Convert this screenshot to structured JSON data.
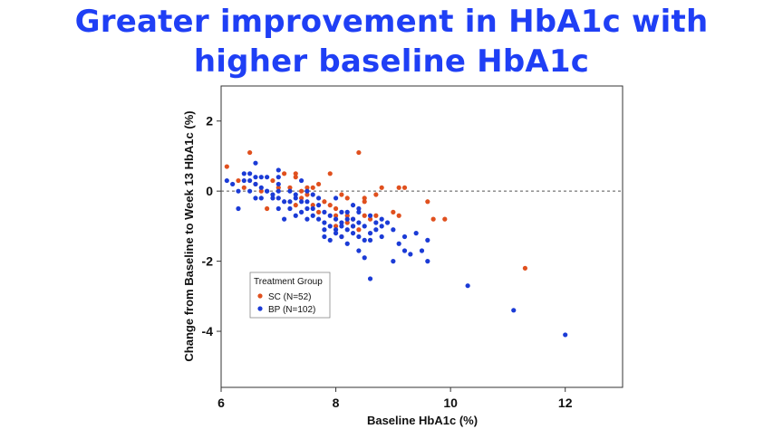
{
  "title_line1": "Greater improvement in HbA1c with",
  "title_line2": "higher baseline HbA1c",
  "colors": {
    "title": "#1f3ff5",
    "sc": "#e0501e",
    "bp": "#1b3bd6"
  },
  "chart_data": {
    "type": "scatter",
    "xlabel": "Baseline HbA1c (%)",
    "ylabel": "Change from Baseline to Week 13 HbA1c (%)",
    "xlim": [
      6,
      13
    ],
    "ylim": [
      -5.6,
      3
    ],
    "xticks": [
      6,
      8,
      10,
      12
    ],
    "yticks": [
      2,
      0,
      -2,
      -4
    ],
    "reference_line": {
      "y": 0,
      "style": "dashed"
    },
    "legend": {
      "title": "Treatment Group",
      "placement": "lower-left"
    },
    "series": [
      {
        "name": "SC (N=52)",
        "color": "#e0501e",
        "points": [
          [
            6.1,
            0.7
          ],
          [
            6.3,
            0.3
          ],
          [
            6.4,
            0.1
          ],
          [
            6.5,
            1.1
          ],
          [
            6.6,
            0.2
          ],
          [
            6.7,
            0.0
          ],
          [
            6.8,
            -0.5
          ],
          [
            6.9,
            0.3
          ],
          [
            7.0,
            0.1
          ],
          [
            7.1,
            0.5
          ],
          [
            7.2,
            0.1
          ],
          [
            7.3,
            0.5
          ],
          [
            7.3,
            0.4
          ],
          [
            7.4,
            0.0
          ],
          [
            7.4,
            -0.2
          ],
          [
            7.5,
            0.1
          ],
          [
            7.5,
            -0.1
          ],
          [
            7.6,
            -0.4
          ],
          [
            7.6,
            0.1
          ],
          [
            7.7,
            0.2
          ],
          [
            7.7,
            -0.6
          ],
          [
            7.8,
            -0.3
          ],
          [
            7.9,
            0.5
          ],
          [
            7.9,
            -0.4
          ],
          [
            8.0,
            -0.5
          ],
          [
            8.0,
            -0.7
          ],
          [
            8.0,
            -1.0
          ],
          [
            8.1,
            -0.1
          ],
          [
            8.1,
            -1.3
          ],
          [
            8.2,
            -0.2
          ],
          [
            8.2,
            -0.7
          ],
          [
            8.2,
            -0.9
          ],
          [
            8.3,
            -0.8
          ],
          [
            8.3,
            -1.0
          ],
          [
            8.4,
            1.1
          ],
          [
            8.4,
            -1.1
          ],
          [
            8.5,
            -0.2
          ],
          [
            8.5,
            -0.3
          ],
          [
            8.5,
            -0.7
          ],
          [
            8.6,
            -0.8
          ],
          [
            8.7,
            -0.1
          ],
          [
            8.7,
            -0.7
          ],
          [
            8.8,
            0.1
          ],
          [
            9.0,
            -0.6
          ],
          [
            9.1,
            -0.7
          ],
          [
            9.1,
            0.1
          ],
          [
            9.2,
            0.1
          ],
          [
            9.6,
            -0.3
          ],
          [
            9.7,
            -0.8
          ],
          [
            9.9,
            -0.8
          ],
          [
            7.3,
            -0.4
          ],
          [
            11.3,
            -2.2
          ]
        ]
      },
      {
        "name": "BP (N=102)",
        "color": "#1b3bd6",
        "points": [
          [
            6.1,
            0.3
          ],
          [
            6.2,
            0.2
          ],
          [
            6.3,
            0.0
          ],
          [
            6.3,
            -0.5
          ],
          [
            6.4,
            0.5
          ],
          [
            6.4,
            0.3
          ],
          [
            6.5,
            0.0
          ],
          [
            6.5,
            0.3
          ],
          [
            6.5,
            0.5
          ],
          [
            6.6,
            0.8
          ],
          [
            6.6,
            0.4
          ],
          [
            6.6,
            0.2
          ],
          [
            6.6,
            -0.2
          ],
          [
            6.7,
            0.4
          ],
          [
            6.7,
            0.1
          ],
          [
            6.7,
            -0.2
          ],
          [
            6.8,
            0.0
          ],
          [
            6.8,
            0.4
          ],
          [
            6.9,
            -0.1
          ],
          [
            6.9,
            -0.2
          ],
          [
            7.0,
            0.6
          ],
          [
            7.0,
            0.4
          ],
          [
            7.0,
            0.2
          ],
          [
            7.0,
            -0.2
          ],
          [
            7.0,
            -0.5
          ],
          [
            7.1,
            -0.3
          ],
          [
            7.1,
            -0.8
          ],
          [
            7.2,
            0.0
          ],
          [
            7.2,
            -0.5
          ],
          [
            7.3,
            -0.2
          ],
          [
            7.3,
            -0.7
          ],
          [
            7.4,
            0.3
          ],
          [
            7.4,
            -0.3
          ],
          [
            7.4,
            -0.6
          ],
          [
            7.5,
            0.0
          ],
          [
            7.5,
            -0.5
          ],
          [
            7.5,
            -0.8
          ],
          [
            7.6,
            -0.1
          ],
          [
            7.6,
            -0.7
          ],
          [
            7.7,
            -0.2
          ],
          [
            7.7,
            -0.4
          ],
          [
            7.7,
            -0.8
          ],
          [
            7.8,
            -0.9
          ],
          [
            7.8,
            -1.1
          ],
          [
            7.8,
            -1.3
          ],
          [
            7.9,
            -1.0
          ],
          [
            7.9,
            -1.4
          ],
          [
            8.0,
            -0.2
          ],
          [
            8.0,
            -0.8
          ],
          [
            8.0,
            -1.1
          ],
          [
            8.1,
            -0.6
          ],
          [
            8.1,
            -1.0
          ],
          [
            8.1,
            -1.3
          ],
          [
            8.2,
            -0.8
          ],
          [
            8.2,
            -1.1
          ],
          [
            8.2,
            -1.5
          ],
          [
            8.3,
            -0.4
          ],
          [
            8.3,
            -0.8
          ],
          [
            8.3,
            -1.2
          ],
          [
            8.4,
            -0.6
          ],
          [
            8.4,
            -0.9
          ],
          [
            8.4,
            -1.3
          ],
          [
            8.4,
            -1.7
          ],
          [
            8.5,
            -1.0
          ],
          [
            8.5,
            -1.4
          ],
          [
            8.5,
            -1.9
          ],
          [
            8.6,
            -0.7
          ],
          [
            8.6,
            -1.4
          ],
          [
            8.6,
            -2.5
          ],
          [
            8.7,
            -0.9
          ],
          [
            8.7,
            -1.1
          ],
          [
            8.8,
            -1.0
          ],
          [
            8.8,
            -1.3
          ],
          [
            8.9,
            -0.9
          ],
          [
            9.0,
            -1.1
          ],
          [
            9.0,
            -2.0
          ],
          [
            9.1,
            -1.5
          ],
          [
            9.2,
            -1.7
          ],
          [
            9.3,
            -1.8
          ],
          [
            9.4,
            -1.2
          ],
          [
            9.5,
            -1.7
          ],
          [
            9.6,
            -1.4
          ],
          [
            9.6,
            -2.0
          ],
          [
            10.3,
            -2.7
          ],
          [
            11.1,
            -3.4
          ],
          [
            12.0,
            -4.1
          ],
          [
            6.8,
            0.0
          ],
          [
            7.0,
            0.0
          ],
          [
            7.2,
            -0.3
          ],
          [
            7.3,
            -0.1
          ],
          [
            7.5,
            -0.3
          ],
          [
            7.6,
            -0.5
          ],
          [
            7.8,
            -0.6
          ],
          [
            7.9,
            -0.7
          ],
          [
            8.0,
            -1.2
          ],
          [
            8.1,
            -0.9
          ],
          [
            8.2,
            -0.6
          ],
          [
            8.3,
            -1.0
          ],
          [
            8.4,
            -0.5
          ],
          [
            8.6,
            -1.2
          ],
          [
            8.8,
            -0.8
          ],
          [
            9.2,
            -1.3
          ]
        ]
      }
    ]
  }
}
